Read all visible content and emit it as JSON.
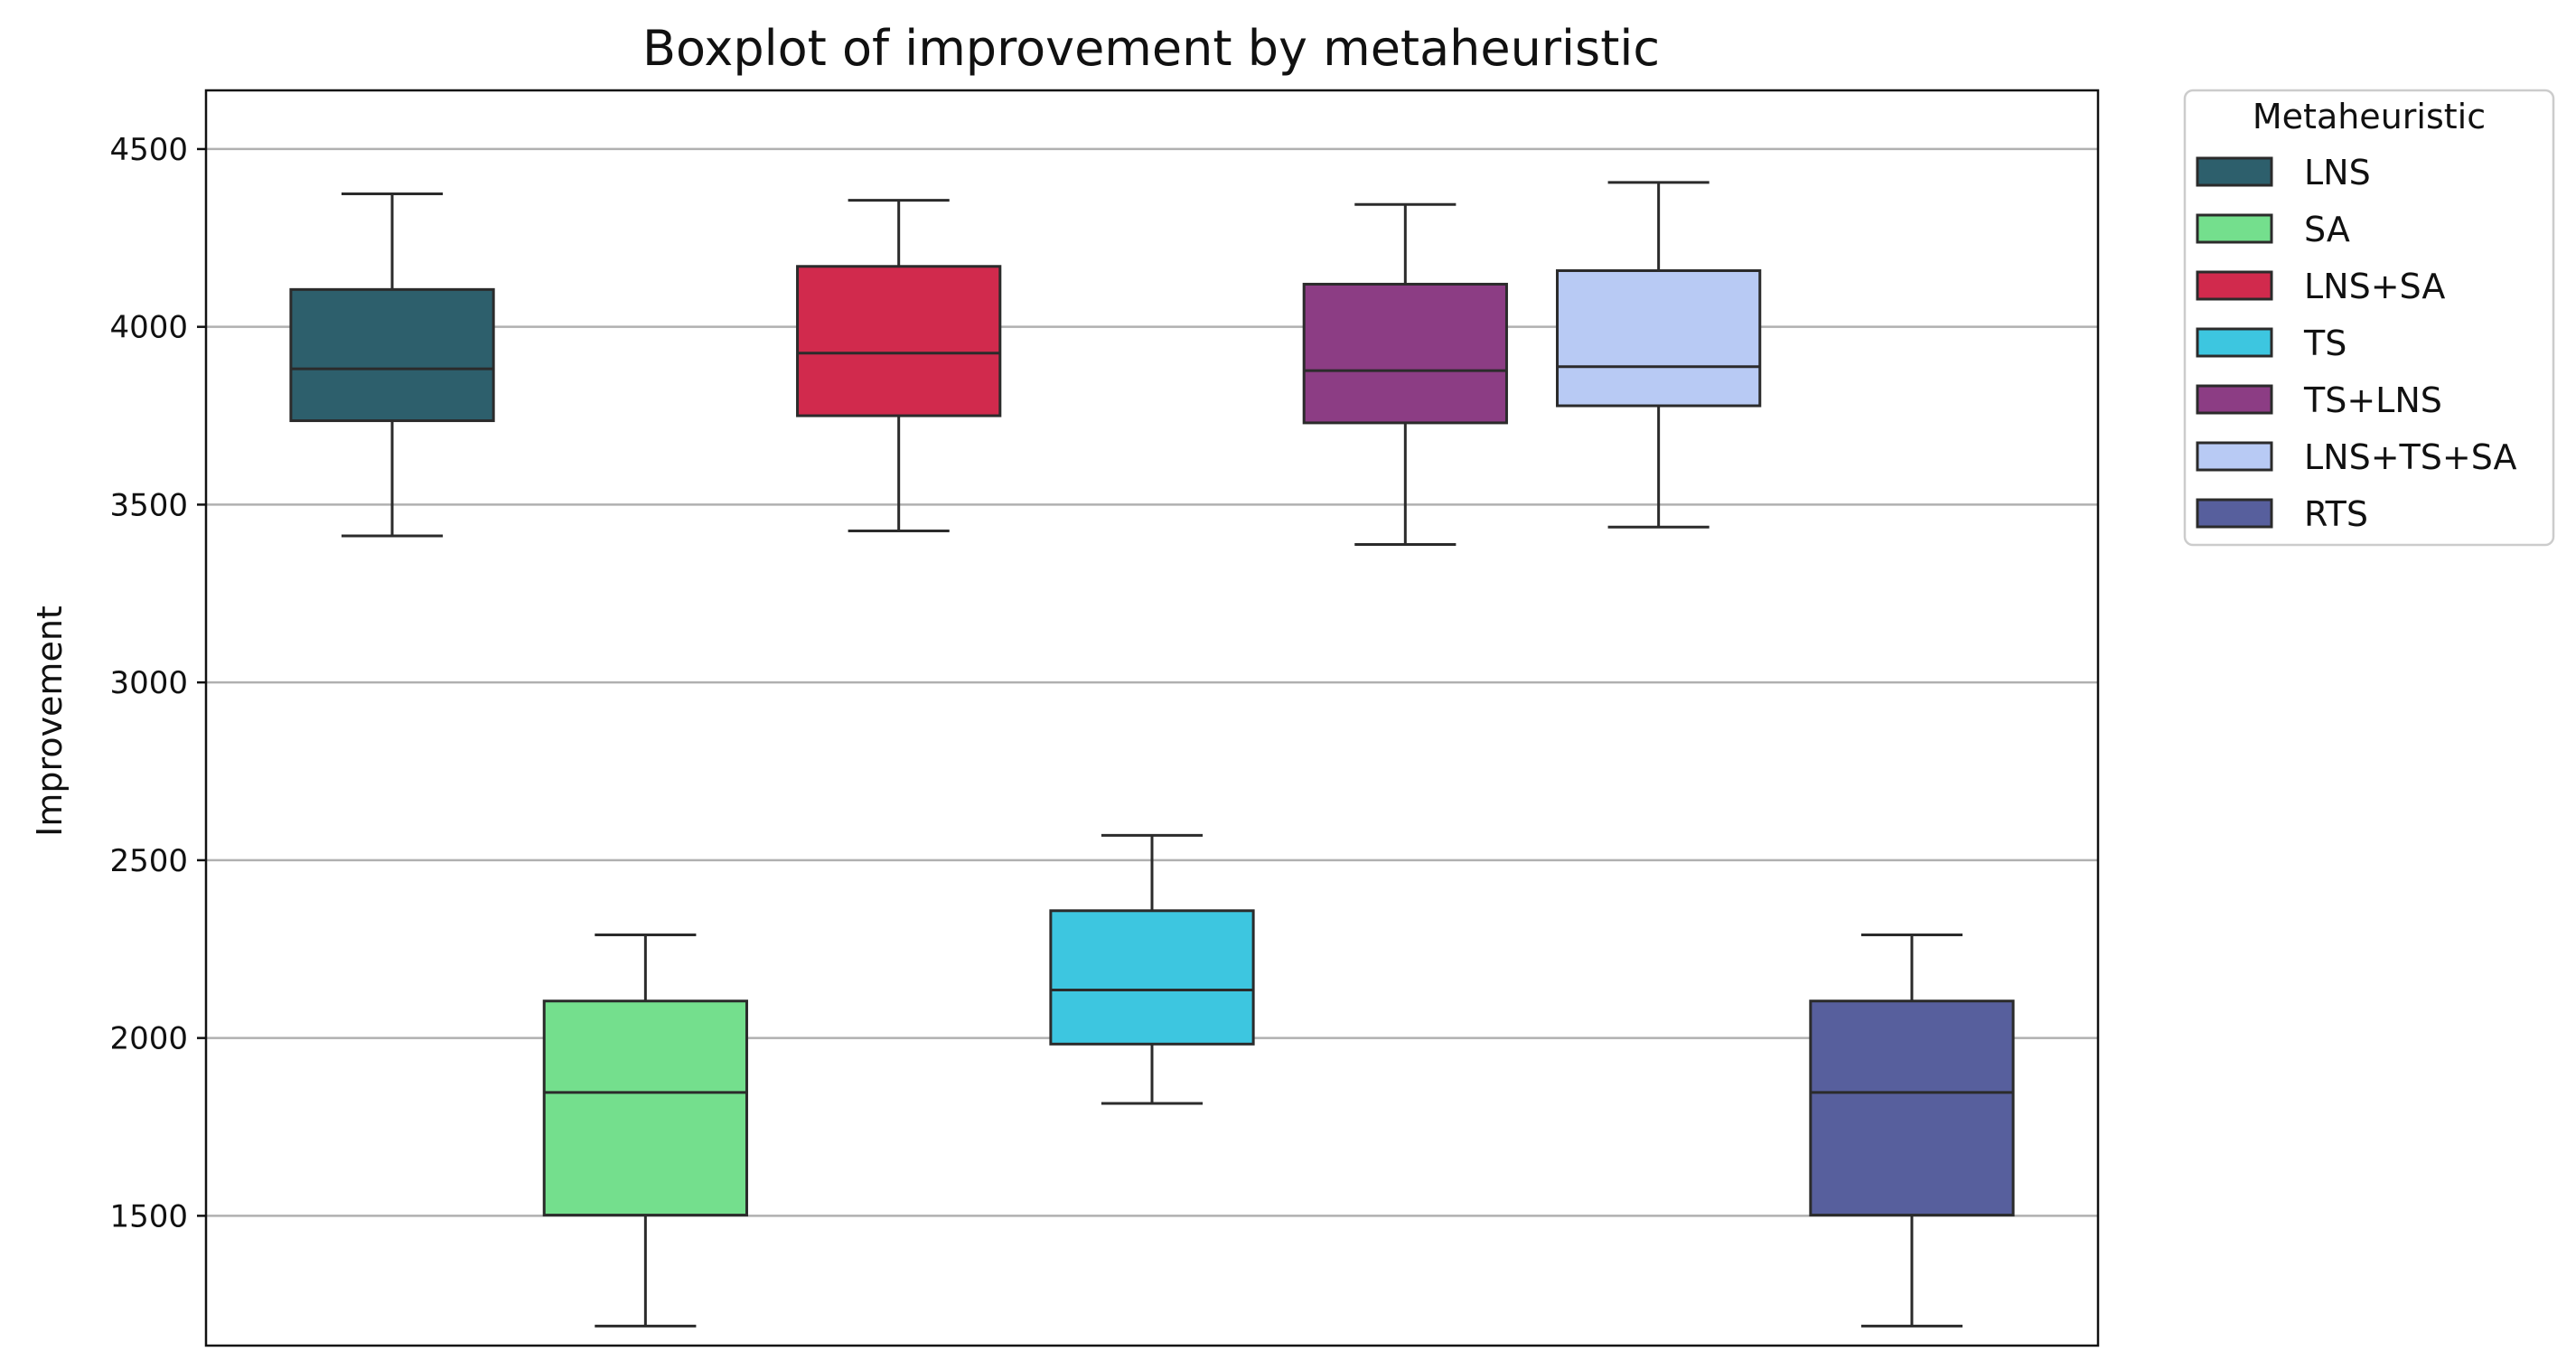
{
  "chart_data": {
    "type": "box",
    "title": "Boxplot of improvement by metaheuristic",
    "xlabel": "",
    "ylabel": "Improvement",
    "ylim": [
      1135,
      4665
    ],
    "yticks": [
      1500,
      2000,
      2500,
      3000,
      3500,
      4000,
      4500
    ],
    "grid": "horizontal",
    "legend": {
      "title": "Metaheuristic",
      "placement": "outside-right-top"
    },
    "series": [
      {
        "name": "LNS",
        "color": "#2d5f6c",
        "min": 3412,
        "q1": 3736,
        "median": 3882,
        "q3": 4105,
        "max": 4374
      },
      {
        "name": "SA",
        "color": "#74df8d",
        "min": 1190,
        "q1": 1502,
        "median": 1847,
        "q3": 2104,
        "max": 2290
      },
      {
        "name": "LNS+SA",
        "color": "#d12a4d",
        "min": 3426,
        "q1": 3750,
        "median": 3926,
        "q3": 4170,
        "max": 4356
      },
      {
        "name": "TS",
        "color": "#3dc6e0",
        "min": 1816,
        "q1": 1983,
        "median": 2135,
        "q3": 2358,
        "max": 2570
      },
      {
        "name": "TS+LNS",
        "color": "#8c3d84",
        "min": 3388,
        "q1": 3730,
        "median": 3877,
        "q3": 4120,
        "max": 4344
      },
      {
        "name": "LNS+TS+SA",
        "color": "#b8caf4",
        "min": 3437,
        "q1": 3778,
        "median": 3888,
        "q3": 4158,
        "max": 4406
      },
      {
        "name": "RTS",
        "color": "#575f9d",
        "min": 1190,
        "q1": 1502,
        "median": 1847,
        "q3": 2104,
        "max": 2290
      }
    ]
  }
}
